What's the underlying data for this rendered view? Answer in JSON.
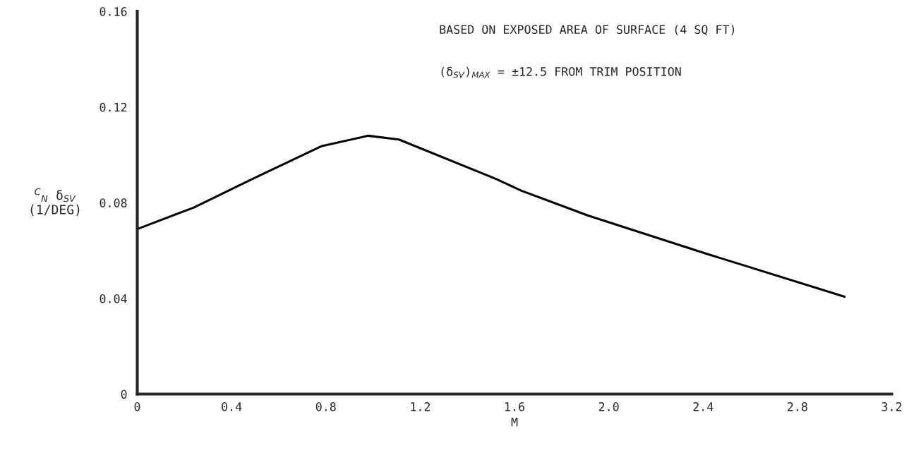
{
  "chart_data": {
    "type": "line",
    "x": [
      0,
      0.24,
      0.49,
      0.78,
      0.98,
      1.11,
      1.52,
      1.63,
      1.91,
      2.42,
      3.0
    ],
    "series": [
      {
        "color": "#000000",
        "values": [
          0.069,
          0.078,
          0.09,
          0.1036,
          0.108,
          0.1064,
          0.09,
          0.085,
          0.0747,
          0.0585,
          0.0407
        ]
      }
    ],
    "xlabel": "M",
    "ylabel": "$^{C}$$_{N}$ δ$_{SV}$\n(1/DEG)",
    "xlim": [
      0,
      3.2
    ],
    "ylim": [
      0,
      0.16
    ],
    "xticks": [
      {
        "value": 0,
        "label": "0"
      },
      0.4,
      0.8,
      1.2,
      1.6,
      {
        "value": 2.0,
        "label": "2.0"
      },
      2.4,
      2.8,
      3.2
    ],
    "yticks": [
      {
        "value": 0,
        "label": "0"
      },
      0.04,
      0.08,
      0.12,
      0.16
    ],
    "annotations": [
      "BASED ON EXPOSED AREA OF SURFACE (4 SQ FT)",
      "(δ$_{SV}$)$_{MAX}$ = ±12.5 FROM TRIM POSITION"
    ],
    "grid": false,
    "marker": "none",
    "line_style": "solid"
  }
}
